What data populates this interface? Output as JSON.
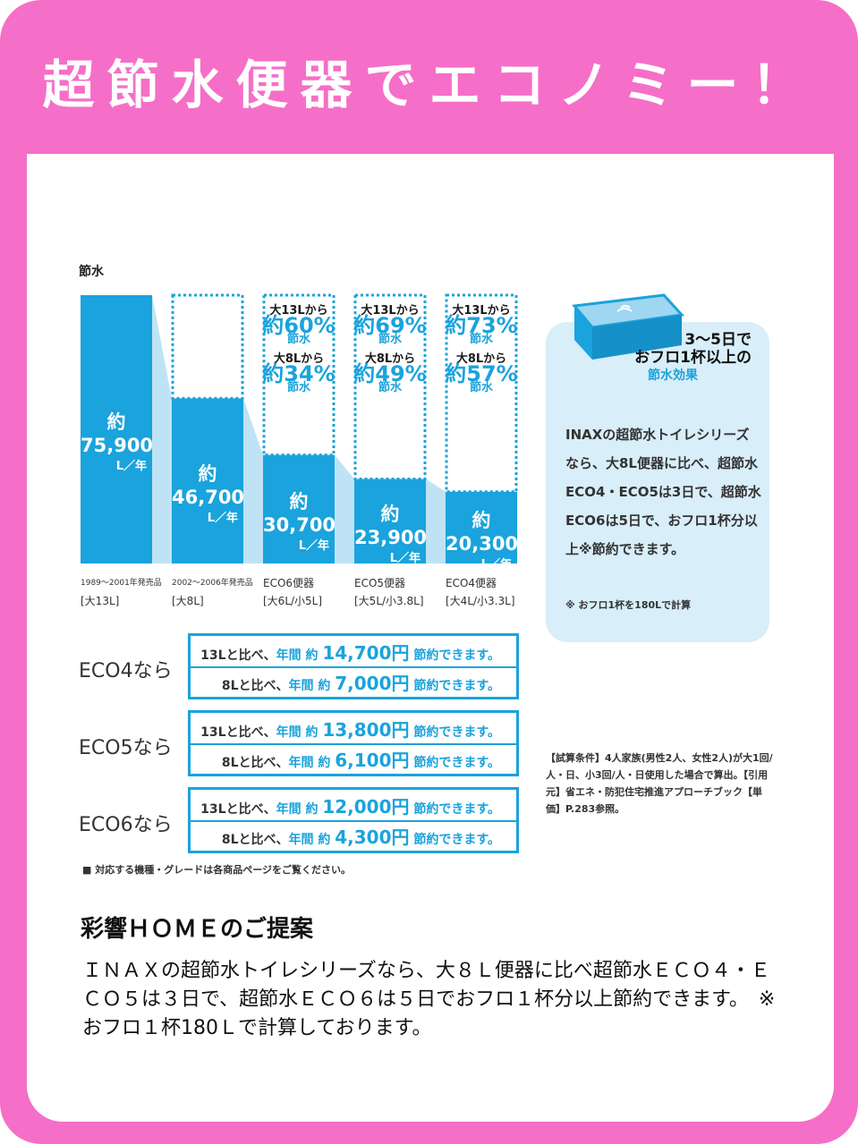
{
  "title": "超節水便器でエコノミー！",
  "chart_data": {
    "type": "bar",
    "ylabel": "節水",
    "categories": [
      {
        "line1": "1989〜2001年発売品",
        "line2": "[大13L]"
      },
      {
        "line1": "2002〜2006年発売品",
        "line2": "[大8L]"
      },
      {
        "line1": "ECO6便器",
        "line2": "[大6L/小5L]"
      },
      {
        "line1": "ECO5便器",
        "line2": "[大5L/小3.8L]"
      },
      {
        "line1": "ECO4便器",
        "line2": "[大4L/小3.3L]"
      }
    ],
    "values": [
      75900,
      46700,
      30700,
      23900,
      20300
    ],
    "value_labels": [
      "約75,900",
      "約46,700",
      "約30,700",
      "約23,900",
      "約20,300"
    ],
    "unit": "L／年",
    "reductions": [
      null,
      null,
      {
        "from13": "大13Lから",
        "p13": "約60%",
        "from8": "大8Lから",
        "p8": "約34%",
        "word": "節水"
      },
      {
        "from13": "大13Lから",
        "p13": "約69%",
        "from8": "大8Lから",
        "p8": "約49%",
        "word": "節水"
      },
      {
        "from13": "大13Lから",
        "p13": "約73%",
        "from8": "大8Lから",
        "p8": "約57%",
        "word": "節水"
      }
    ],
    "color": "#1aa3dc"
  },
  "info": {
    "head1": "3〜5日で",
    "head2": "おフロ1杯以上の",
    "head3": "節水効果",
    "body": "INAXの超節水トイレシリーズなら、大8L便器に比べ、超節水ECO4・ECO5は3日で、超節水ECO6は5日で、おフロ1杯分以上※節約できます。",
    "note": "※ おフロ1杯を180Lで計算"
  },
  "savings": [
    {
      "label": "ECO4なら",
      "rows": [
        {
          "pre": "13Lと比べ、",
          "mid": "年間 約",
          "amount": "14,700円",
          "post": "節約できます。"
        },
        {
          "pre": "8Lと比べ、",
          "mid": "年間 約",
          "amount": "7,000円",
          "post": "節約できます。"
        }
      ]
    },
    {
      "label": "ECO5なら",
      "rows": [
        {
          "pre": "13Lと比べ、",
          "mid": "年間 約",
          "amount": "13,800円",
          "post": "節約できます。"
        },
        {
          "pre": "8Lと比べ、",
          "mid": "年間 約",
          "amount": "6,100円",
          "post": "節約できます。"
        }
      ]
    },
    {
      "label": "ECO6なら",
      "rows": [
        {
          "pre": "13Lと比べ、",
          "mid": "年間 約",
          "amount": "12,000円",
          "post": "節約できます。"
        },
        {
          "pre": "8Lと比べ、",
          "mid": "年間 約",
          "amount": "4,300円",
          "post": "節約できます。"
        }
      ]
    }
  ],
  "conditions": "【試算条件】4人家族(男性2人、女性2人)が大1回/人・日、小3回/人・日使用した場合で算出。【引用元】省エネ・防犯住宅推進アプローチブック【単価】P.283参照。",
  "footnote": "■ 対応する機種・グレードは各商品ページをご覧ください。",
  "proposal": {
    "title": "彩響ＨＯＭＥのご提案",
    "body": "ＩＮＡＸの超節水トイレシリーズなら、大８Ｌ便器に比べ超節水ＥＣＯ４・ＥＣＯ５は３日で、超節水ＥＣＯ６は５日でおフロ１杯分以上節約できます。　※おフロ１杯180Ｌで計算しております。"
  }
}
